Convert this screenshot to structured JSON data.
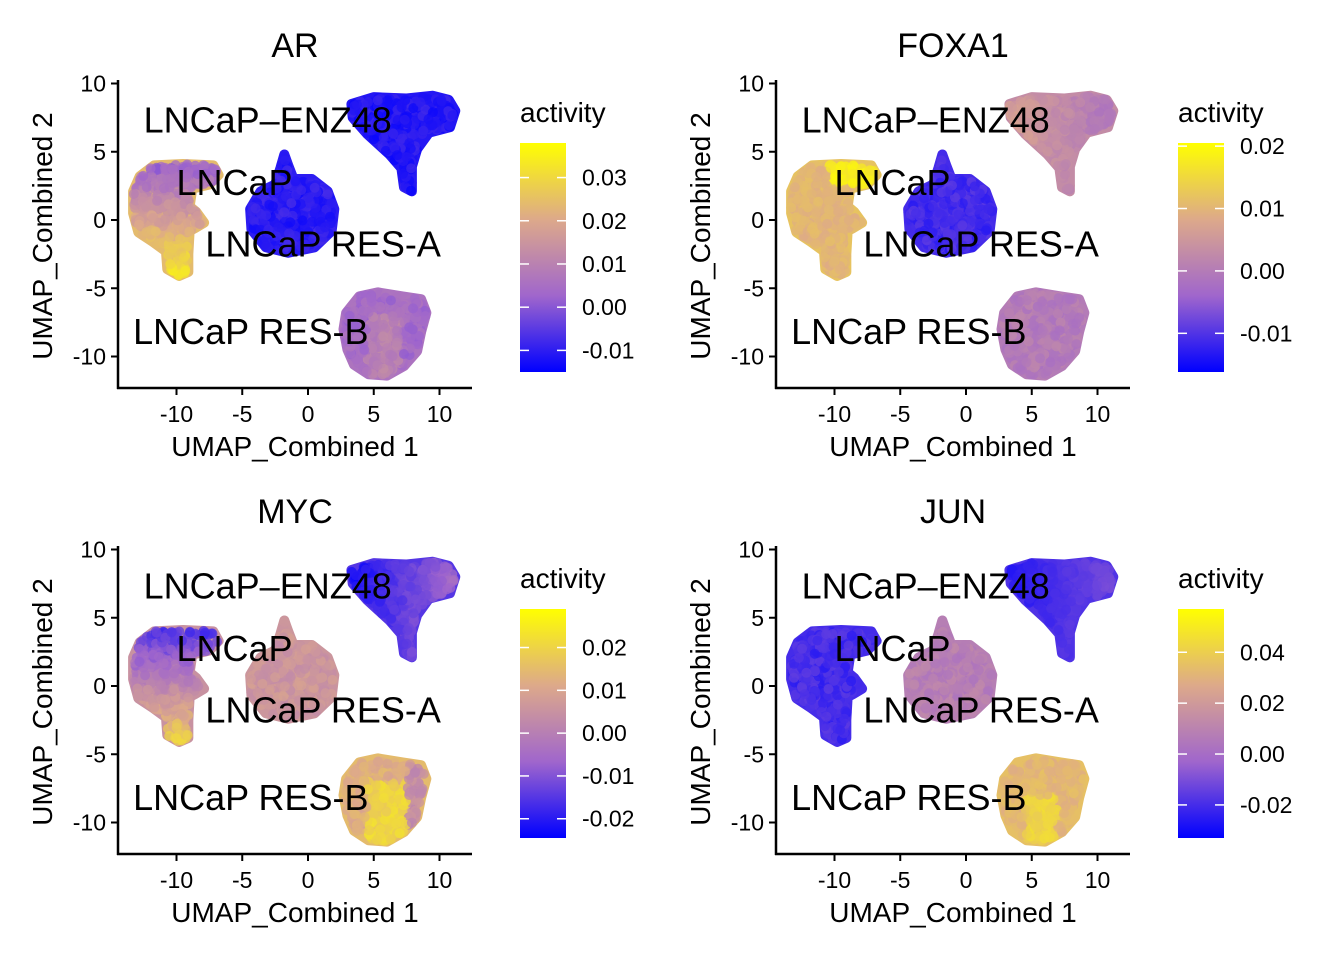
{
  "chart_data": [
    {
      "type": "scatter",
      "title": "AR",
      "xlabel": "UMAP_Combined 1",
      "ylabel": "UMAP_Combined 2",
      "xlim": [
        -14.5,
        12.5
      ],
      "ylim": [
        -12.3,
        10.3
      ],
      "xticks": [
        -10,
        -5,
        0,
        5,
        10
      ],
      "xtick_labels": [
        "-10",
        "-5",
        "0",
        "5",
        "10"
      ],
      "yticks": [
        -10,
        -5,
        0,
        5,
        10
      ],
      "ytick_labels": [
        "-10",
        "-5",
        "0",
        "5",
        "10"
      ],
      "legend": {
        "title": "activity",
        "position": "right",
        "range": [
          -0.015,
          0.038
        ],
        "ticks": [
          -0.01,
          0.0,
          0.01,
          0.02,
          0.03
        ],
        "tick_labels": [
          "-0.01",
          "0.00",
          "0.01",
          "0.02",
          "0.03"
        ],
        "colors": [
          "#0000FF",
          "#A066CC",
          "#DDA98A",
          "#FFFF00"
        ]
      },
      "clusters": [
        {
          "name": "LNCaP",
          "center": [
            -10,
            1
          ],
          "activity_mean": 0.024,
          "activity_gradient": "higher toward bottom tail",
          "label": "LNCaP",
          "label_pos": [
            -10,
            2.7
          ]
        },
        {
          "name": "LNCaP RES-A",
          "center": [
            -2,
            0
          ],
          "activity_mean": -0.01,
          "label": "LNCaP RES-A",
          "label_pos": [
            -7.8,
            -1.8
          ]
        },
        {
          "name": "LNCaP-ENZ48",
          "center": [
            7,
            7.5
          ],
          "activity_mean": -0.011,
          "label": "LNCaP–ENZ48",
          "label_pos": [
            -12.5,
            7.3
          ]
        },
        {
          "name": "LNCaP RES-B",
          "center": [
            5.8,
            -8
          ],
          "activity_mean": 0.006,
          "label": "LNCaP RES-B",
          "label_pos": [
            -13.3,
            -8.2
          ]
        }
      ]
    },
    {
      "type": "scatter",
      "title": "FOXA1",
      "xlabel": "UMAP_Combined 1",
      "ylabel": "UMAP_Combined 2",
      "xlim": [
        -14.5,
        12.5
      ],
      "ylim": [
        -12.3,
        10.3
      ],
      "xticks": [
        -10,
        -5,
        0,
        5,
        10
      ],
      "xtick_labels": [
        "-10",
        "-5",
        "0",
        "5",
        "10"
      ],
      "yticks": [
        -10,
        -5,
        0,
        5,
        10
      ],
      "ytick_labels": [
        "-10",
        "-5",
        "0",
        "5",
        "10"
      ],
      "legend": {
        "title": "activity",
        "position": "right",
        "range": [
          -0.0162,
          0.0205
        ],
        "ticks": [
          -0.01,
          0.0,
          0.01,
          0.02
        ],
        "tick_labels": [
          "-0.01",
          "0.00",
          "0.01",
          "0.02"
        ],
        "colors": [
          "#0000FF",
          "#A066CC",
          "#DDA98A",
          "#FFFF00"
        ]
      },
      "clusters": [
        {
          "name": "LNCaP",
          "center": [
            -10,
            1
          ],
          "activity_mean": 0.012,
          "activity_gradient": "highest at top-right",
          "label": "LNCaP",
          "label_pos": [
            -10,
            2.7
          ]
        },
        {
          "name": "LNCaP RES-A",
          "center": [
            -2,
            0
          ],
          "activity_mean": -0.011,
          "label": "LNCaP RES-A",
          "label_pos": [
            -7.8,
            -1.8
          ]
        },
        {
          "name": "LNCaP-ENZ48",
          "center": [
            7,
            7.5
          ],
          "activity_mean": 0.003,
          "label": "LNCaP–ENZ48",
          "label_pos": [
            -12.5,
            7.3
          ]
        },
        {
          "name": "LNCaP RES-B",
          "center": [
            5.8,
            -8
          ],
          "activity_mean": 0.0,
          "label": "LNCaP RES-B",
          "label_pos": [
            -13.3,
            -8.2
          ]
        }
      ]
    },
    {
      "type": "scatter",
      "title": "MYC",
      "xlabel": "UMAP_Combined 1",
      "ylabel": "UMAP_Combined 2",
      "xlim": [
        -14.5,
        12.5
      ],
      "ylim": [
        -12.3,
        10.3
      ],
      "xticks": [
        -10,
        -5,
        0,
        5,
        10
      ],
      "xtick_labels": [
        "-10",
        "-5",
        "0",
        "5",
        "10"
      ],
      "yticks": [
        -10,
        -5,
        0,
        5,
        10
      ],
      "ytick_labels": [
        "-10",
        "-5",
        "0",
        "5",
        "10"
      ],
      "legend": {
        "title": "activity",
        "position": "right",
        "range": [
          -0.0245,
          0.029
        ],
        "ticks": [
          -0.02,
          -0.01,
          0.0,
          0.01,
          0.02
        ],
        "tick_labels": [
          "-0.02",
          "-0.01",
          "0.00",
          "0.01",
          "0.02"
        ],
        "colors": [
          "#0000FF",
          "#A066CC",
          "#DDA98A",
          "#FFFF00"
        ]
      },
      "clusters": [
        {
          "name": "LNCaP",
          "center": [
            -10,
            1
          ],
          "activity_mean": 0.005,
          "activity_gradient": "low at top, high at bottom tail",
          "label": "LNCaP",
          "label_pos": [
            -10,
            2.7
          ]
        },
        {
          "name": "LNCaP RES-A",
          "center": [
            -2,
            0
          ],
          "activity_mean": 0.006,
          "label": "LNCaP RES-A",
          "label_pos": [
            -7.8,
            -1.8
          ]
        },
        {
          "name": "LNCaP-ENZ48",
          "center": [
            7,
            7.5
          ],
          "activity_mean": -0.015,
          "activity_gradient": "lowest at left",
          "label": "LNCaP–ENZ48",
          "label_pos": [
            -12.5,
            7.3
          ]
        },
        {
          "name": "LNCaP RES-B",
          "center": [
            5.8,
            -8
          ],
          "activity_mean": 0.015,
          "label": "LNCaP RES-B",
          "label_pos": [
            -13.3,
            -8.2
          ]
        }
      ]
    },
    {
      "type": "scatter",
      "title": "JUN",
      "xlabel": "UMAP_Combined 1",
      "ylabel": "UMAP_Combined 2",
      "xlim": [
        -14.5,
        12.5
      ],
      "ylim": [
        -12.3,
        10.3
      ],
      "xticks": [
        -10,
        -5,
        0,
        5,
        10
      ],
      "xtick_labels": [
        "-10",
        "-5",
        "0",
        "5",
        "10"
      ],
      "yticks": [
        -10,
        -5,
        0,
        5,
        10
      ],
      "ytick_labels": [
        "-10",
        "-5",
        "0",
        "5",
        "10"
      ],
      "legend": {
        "title": "activity",
        "position": "right",
        "range": [
          -0.033,
          0.057
        ],
        "ticks": [
          -0.02,
          0.0,
          0.02,
          0.04
        ],
        "tick_labels": [
          "-0.02",
          "0.00",
          "0.02",
          "0.04"
        ],
        "colors": [
          "#0000FF",
          "#A066CC",
          "#DDA98A",
          "#FFFF00"
        ]
      },
      "clusters": [
        {
          "name": "LNCaP",
          "center": [
            -10,
            1
          ],
          "activity_mean": -0.02,
          "label": "LNCaP",
          "label_pos": [
            -10,
            2.7
          ]
        },
        {
          "name": "LNCaP RES-A",
          "center": [
            -2,
            0
          ],
          "activity_mean": 0.008,
          "label": "LNCaP RES-A",
          "label_pos": [
            -7.8,
            -1.8
          ]
        },
        {
          "name": "LNCaP-ENZ48",
          "center": [
            7,
            7.5
          ],
          "activity_mean": -0.018,
          "label": "LNCaP–ENZ48",
          "label_pos": [
            -12.5,
            7.3
          ]
        },
        {
          "name": "LNCaP RES-B",
          "center": [
            5.8,
            -8
          ],
          "activity_mean": 0.035,
          "label": "LNCaP RES-B",
          "label_pos": [
            -13.3,
            -8.2
          ]
        }
      ]
    }
  ]
}
